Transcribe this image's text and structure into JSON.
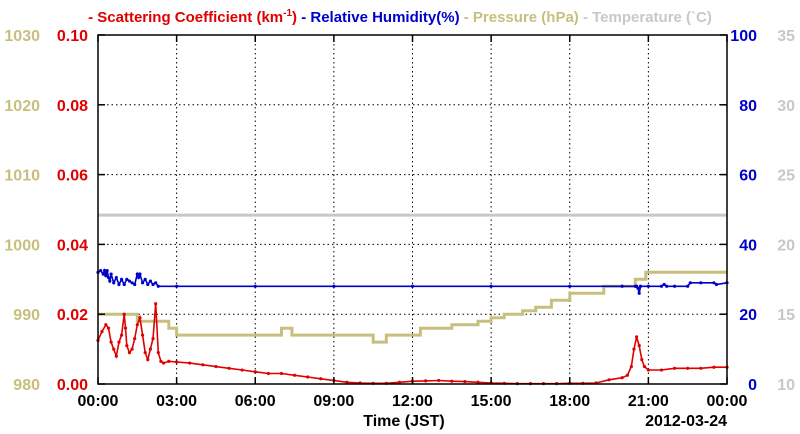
{
  "legend": [
    {
      "id": "sc",
      "dash": "-",
      "label": "Scattering Coefficient (km",
      "sup": "-1",
      "close": ")",
      "color": "#e00000"
    },
    {
      "id": "rh",
      "dash": "-",
      "label": "Relative Humidity(%)",
      "color": "#0000cc"
    },
    {
      "id": "pr",
      "dash": "-",
      "label": "Pressure (hPa)",
      "color": "#c8bf7e"
    },
    {
      "id": "tp",
      "dash": "-",
      "label": "Temperature (`C)",
      "color": "#c8c8c8"
    }
  ],
  "xlabel": "Time (JST)",
  "date_label": "2012-03-24",
  "chart_data": {
    "type": "line",
    "x_range": [
      0,
      24
    ],
    "x_ticks": [
      0,
      3,
      6,
      9,
      12,
      15,
      18,
      21,
      24
    ],
    "x_tick_labels": [
      "00:00",
      "03:00",
      "06:00",
      "09:00",
      "12:00",
      "15:00",
      "18:00",
      "21:00",
      "00:00"
    ],
    "axes": {
      "pressure": {
        "range": [
          980,
          1030
        ],
        "ticks": [
          "980",
          "990",
          "1000",
          "1010",
          "1020",
          "1030"
        ],
        "color": "#c8bf7e"
      },
      "scattering": {
        "range": [
          0,
          0.1
        ],
        "ticks": [
          "0.00",
          "0.02",
          "0.04",
          "0.06",
          "0.08",
          "0.10"
        ],
        "color": "#e00000"
      },
      "humidity": {
        "range": [
          0,
          100
        ],
        "ticks": [
          "0",
          "20",
          "40",
          "60",
          "80",
          "100"
        ],
        "color": "#0000cc"
      },
      "temperature": {
        "range": [
          10,
          35
        ],
        "ticks": [
          "10",
          "15",
          "20",
          "25",
          "30",
          "35"
        ],
        "color": "#c8c8c8"
      }
    },
    "grid": true,
    "series": [
      {
        "name": "Scattering Coefficient (km-1)",
        "axis": "scattering",
        "color": "#e00000",
        "markers": true,
        "x": [
          0.0,
          0.15,
          0.3,
          0.4,
          0.5,
          0.6,
          0.7,
          0.8,
          0.9,
          1.0,
          1.05,
          1.1,
          1.2,
          1.3,
          1.4,
          1.5,
          1.6,
          1.7,
          1.8,
          1.9,
          2.0,
          2.1,
          2.2,
          2.3,
          2.4,
          2.5,
          2.7,
          3.0,
          3.5,
          4.0,
          4.5,
          5.0,
          5.5,
          6.0,
          6.5,
          7.0,
          7.5,
          8.0,
          8.5,
          9.0,
          9.5,
          10.0,
          10.5,
          11.0,
          11.5,
          12.0,
          12.5,
          13.0,
          13.5,
          14.0,
          14.5,
          15.0,
          15.5,
          16.0,
          16.5,
          17.0,
          17.5,
          18.0,
          18.5,
          19.0,
          19.5,
          20.0,
          20.2,
          20.35,
          20.45,
          20.55,
          20.65,
          20.75,
          20.85,
          21.0,
          21.5,
          22.0,
          22.5,
          23.0,
          23.5,
          24.0
        ],
        "y": [
          0.0125,
          0.015,
          0.017,
          0.016,
          0.012,
          0.01,
          0.008,
          0.012,
          0.014,
          0.02,
          0.016,
          0.011,
          0.009,
          0.01,
          0.013,
          0.017,
          0.019,
          0.014,
          0.009,
          0.007,
          0.01,
          0.013,
          0.023,
          0.009,
          0.0065,
          0.006,
          0.0065,
          0.0063,
          0.006,
          0.0055,
          0.005,
          0.0045,
          0.004,
          0.0035,
          0.003,
          0.003,
          0.0025,
          0.002,
          0.0015,
          0.001,
          0.0005,
          0.0003,
          0.0002,
          0.0002,
          0.0005,
          0.0008,
          0.0009,
          0.001,
          0.0008,
          0.0007,
          0.0005,
          0.0003,
          0.0002,
          0.0001,
          0.0001,
          0.0001,
          0.0001,
          0.0002,
          0.0002,
          0.0003,
          0.0012,
          0.0018,
          0.0025,
          0.005,
          0.01,
          0.0135,
          0.011,
          0.007,
          0.005,
          0.004,
          0.004,
          0.0045,
          0.0045,
          0.0045,
          0.0048,
          0.0048
        ]
      },
      {
        "name": "Relative Humidity(%)",
        "axis": "humidity",
        "color": "#0000cc",
        "markers": true,
        "x": [
          0.0,
          0.1,
          0.2,
          0.25,
          0.3,
          0.35,
          0.4,
          0.45,
          0.5,
          0.6,
          0.7,
          0.8,
          0.9,
          1.0,
          1.1,
          1.2,
          1.3,
          1.4,
          1.5,
          1.55,
          1.6,
          1.7,
          1.8,
          1.9,
          2.0,
          2.1,
          2.2,
          2.3,
          3.0,
          6.0,
          9.0,
          12.0,
          15.0,
          18.0,
          20.0,
          20.5,
          20.55,
          20.6,
          20.65,
          20.7,
          21.0,
          21.5,
          21.6,
          21.7,
          22.0,
          22.5,
          22.6,
          23.0,
          23.5,
          23.6,
          24.0
        ],
        "y": [
          32,
          32.5,
          31.5,
          32.5,
          31,
          32.5,
          30.5,
          29.5,
          31.5,
          29,
          30.5,
          28.5,
          30,
          28.5,
          30,
          29.5,
          29,
          28.5,
          31.5,
          30.5,
          31.5,
          29,
          30,
          28.5,
          29.5,
          28.5,
          29,
          28,
          28,
          28,
          28,
          28,
          28,
          28,
          28,
          28,
          28,
          27.5,
          26,
          28,
          28,
          28,
          28.5,
          28,
          28,
          28,
          29,
          29,
          29,
          28.5,
          29
        ]
      },
      {
        "name": "Pressure (hPa)",
        "axis": "pressure",
        "color": "#c8bf7e",
        "step": true,
        "x": [
          0.0,
          1.5,
          2.7,
          3.0,
          3.3,
          7.0,
          7.4,
          10.5,
          11.0,
          12.3,
          13.5,
          14.5,
          15.0,
          15.5,
          16.2,
          16.7,
          17.3,
          18.0,
          19.3,
          20.5,
          20.9,
          24.0
        ],
        "y": [
          990,
          989,
          988,
          987,
          987,
          988,
          987,
          986,
          987,
          988,
          988.5,
          989,
          989.5,
          990,
          990.5,
          991,
          992,
          993,
          994,
          995,
          996,
          996
        ]
      },
      {
        "name": "Temperature (C)",
        "axis": "temperature",
        "color": "#c8c8c8",
        "x": [
          0,
          24
        ],
        "y": [
          22.1,
          22.1
        ]
      }
    ]
  }
}
